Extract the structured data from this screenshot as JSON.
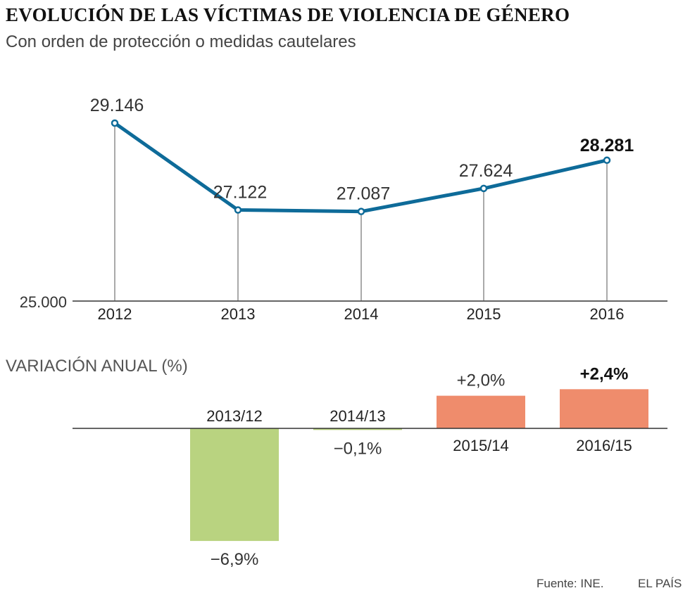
{
  "header": {
    "title": "EVOLUCIÓN DE LAS VÍCTIMAS DE VIOLENCIA DE GÉNERO",
    "subtitle": "Con orden de protección o medidas cautelares"
  },
  "footer": {
    "source": "Fuente: INE.",
    "brand": "EL PAÍS"
  },
  "colors": {
    "line": "#0e6b99",
    "negative": "#b9d380",
    "positive": "#ef8c6c",
    "axis": "#333333",
    "drop_line": "#555555"
  },
  "chart_data": [
    {
      "type": "line",
      "title": "EVOLUCIÓN DE LAS VÍCTIMAS DE VIOLENCIA DE GÉNERO",
      "subtitle": "Con orden de protección o medidas cautelares",
      "categories": [
        "2012",
        "2013",
        "2014",
        "2015",
        "2016"
      ],
      "values": [
        29146,
        27122,
        27087,
        27624,
        28281
      ],
      "value_labels": [
        "29.146",
        "27.122",
        "27.087",
        "27.624",
        "28.281"
      ],
      "highlight_index": 4,
      "ylim": [
        25000,
        29146
      ],
      "y_baseline_label": "25.000",
      "xlabel": "",
      "ylabel": ""
    },
    {
      "type": "bar",
      "title": "VARIACIÓN ANUAL (%)",
      "categories": [
        "2013/12",
        "2014/13",
        "2015/14",
        "2016/15"
      ],
      "values": [
        -6.9,
        -0.1,
        2.0,
        2.4
      ],
      "value_labels": [
        "−6,9%",
        "−0,1%",
        "+2,0%",
        "+2,4%"
      ],
      "highlight_index": 3,
      "xlabel": "",
      "ylabel": ""
    }
  ]
}
